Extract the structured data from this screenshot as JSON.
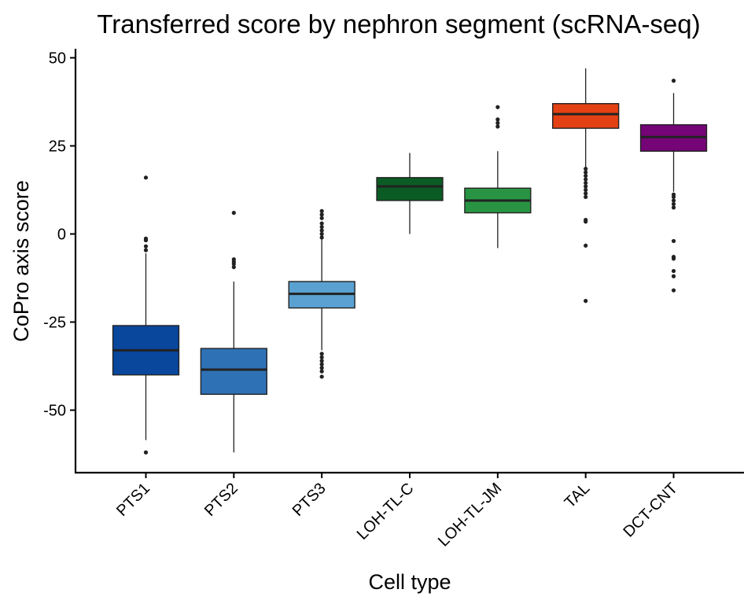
{
  "chart_data": {
    "type": "box",
    "title": "Transferred score by nephron segment (scRNA-seq)",
    "xlabel": "Cell type",
    "ylabel": "CoPro axis score",
    "ylim": [
      -68,
      53
    ],
    "y_ticks": [
      50,
      25,
      0,
      -25,
      -50
    ],
    "y_tick_labels": [
      "50",
      "25",
      "0",
      "-25",
      "-50"
    ],
    "grid": false,
    "categories": [
      "PTS1",
      "PTS2",
      "PTS3",
      "LOH-TL-C",
      "LOH-TL-JM",
      "TAL",
      "DCT-CNT"
    ],
    "boxes": [
      {
        "name": "PTS1",
        "color": "#08479c",
        "whisker_low": -58.5,
        "q1": -40.0,
        "median": -33.0,
        "q3": -26.0,
        "whisker_high": -5.5,
        "outliers": [
          16.0,
          -1.3,
          -1.8,
          -3.5,
          -4.6,
          -62.0
        ]
      },
      {
        "name": "PTS2",
        "color": "#2f71b5",
        "whisker_low": -62.0,
        "q1": -45.5,
        "median": -38.5,
        "q3": -32.5,
        "whisker_high": -13.5,
        "outliers": [
          6.0,
          -7.2,
          -7.9,
          -8.5,
          -9.4
        ]
      },
      {
        "name": "PTS3",
        "color": "#5aa1d2",
        "whisker_low": -33.0,
        "q1": -21.0,
        "median": -17.0,
        "q3": -13.5,
        "whisker_high": -1.5,
        "outliers": [
          6.5,
          5.5,
          4.5,
          3.0,
          2.0,
          1.0,
          0.0,
          -1.0,
          -34.0,
          -35.0,
          -36.0,
          -37.0,
          -38.0,
          -39.0,
          -40.5
        ]
      },
      {
        "name": "LOH-TL-C",
        "color": "#0b5c24",
        "whisker_low": 0.0,
        "q1": 9.5,
        "median": 13.5,
        "q3": 16.0,
        "whisker_high": 23.0,
        "outliers": []
      },
      {
        "name": "LOH-TL-JM",
        "color": "#289443",
        "whisker_low": -4.0,
        "q1": 6.0,
        "median": 9.5,
        "q3": 13.0,
        "whisker_high": 23.5,
        "outliers": [
          36.0,
          32.5,
          31.5,
          30.5
        ]
      },
      {
        "name": "TAL",
        "color": "#e34113",
        "whisker_low": 19.0,
        "q1": 30.0,
        "median": 34.0,
        "q3": 37.0,
        "whisker_high": 47.0,
        "outliers": [
          18.5,
          17.5,
          16.5,
          15.5,
          14.5,
          13.5,
          12.5,
          11.5,
          10.5,
          4.0,
          3.5,
          -3.3,
          -19.0
        ]
      },
      {
        "name": "DCT-CNT",
        "color": "#750477",
        "whisker_low": 12.0,
        "q1": 23.5,
        "median": 27.5,
        "q3": 31.0,
        "whisker_high": 40.0,
        "outliers": [
          43.5,
          11.2,
          10.5,
          9.5,
          8.5,
          7.5,
          -2.0,
          -6.5,
          -7.0,
          -10.5,
          -12.0,
          -16.0
        ]
      }
    ]
  }
}
